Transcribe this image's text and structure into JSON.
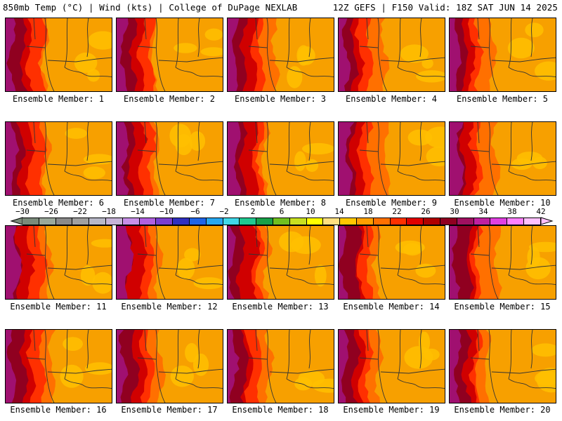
{
  "header": {
    "title_left": "850mb Temp (°C) | Wind (kts) | College of DuPage NEXLAB",
    "title_right": "12Z GEFS | F150 Valid: 18Z SAT JUN 14 2025"
  },
  "panels": [
    {
      "label": "Ensemble Member: 1"
    },
    {
      "label": "Ensemble Member: 2"
    },
    {
      "label": "Ensemble Member: 3"
    },
    {
      "label": "Ensemble Member: 4"
    },
    {
      "label": "Ensemble Member: 5"
    },
    {
      "label": "Ensemble Member: 6"
    },
    {
      "label": "Ensemble Member: 7"
    },
    {
      "label": "Ensemble Member: 8"
    },
    {
      "label": "Ensemble Member: 9"
    },
    {
      "label": "Ensemble Member: 10"
    },
    {
      "label": "Ensemble Member: 11"
    },
    {
      "label": "Ensemble Member: 12"
    },
    {
      "label": "Ensemble Member: 13"
    },
    {
      "label": "Ensemble Member: 14"
    },
    {
      "label": "Ensemble Member: 15"
    },
    {
      "label": "Ensemble Member: 16"
    },
    {
      "label": "Ensemble Member: 17"
    },
    {
      "label": "Ensemble Member: 18"
    },
    {
      "label": "Ensemble Member: 19"
    },
    {
      "label": "Ensemble Member: 20"
    }
  ],
  "colorbar": {
    "tick_labels": [
      "−30",
      "−26",
      "−22",
      "−18",
      "−14",
      "−10",
      "−6",
      "−2",
      "2",
      "6",
      "10",
      "14",
      "18",
      "22",
      "26",
      "30",
      "34",
      "38",
      "42"
    ],
    "colors": [
      "#7a8b7a",
      "#9aa89a",
      "#8a8a8a",
      "#a0a0a0",
      "#b8b8c8",
      "#c6b4d8",
      "#c890e8",
      "#b060e0",
      "#7a3fd0",
      "#3030c0",
      "#1e64e6",
      "#28a8f0",
      "#40d8e8",
      "#20c890",
      "#18a048",
      "#70c020",
      "#c8e020",
      "#ffff00",
      "#ffe080",
      "#ffc800",
      "#ffa000",
      "#ff7000",
      "#ff3000",
      "#e00000",
      "#b00000",
      "#900020",
      "#a01060",
      "#c020a0",
      "#e040e0",
      "#ff80ff",
      "#ffc0ff"
    ]
  }
}
